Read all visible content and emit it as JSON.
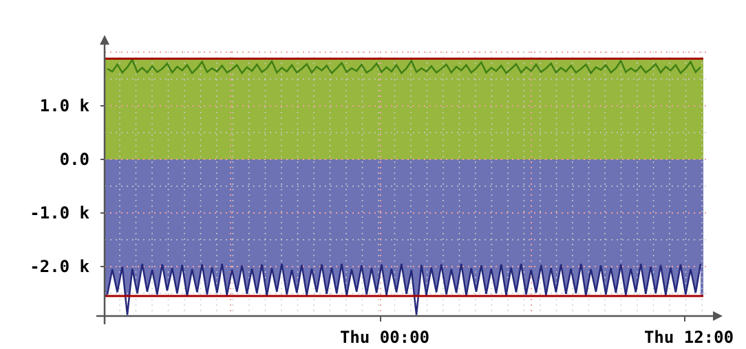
{
  "chart_data": {
    "type": "area",
    "ylim": [
      -2.9,
      2.0
    ],
    "y_ticks": [
      {
        "value": 1.0,
        "label": "1.0 k"
      },
      {
        "value": 0.0,
        "label": "0.0"
      },
      {
        "value": -1.0,
        "label": "-1.0 k"
      },
      {
        "value": -2.0,
        "label": "-2.0 k"
      }
    ],
    "x_ticks": [
      "Thu 00:00",
      "Thu 12:00"
    ],
    "upper_limit": 1.88,
    "lower_limit": -2.55,
    "grid": true,
    "colors": {
      "positive_fill": "#97b73f",
      "positive_line": "#3f7f14",
      "negative_fill": "#6d72b5",
      "negative_line": "#25287a",
      "limit_line": "#a80000",
      "grid": "#f4a0a0"
    },
    "series": [
      {
        "values": [
          1.69,
          1.64,
          1.77,
          1.62,
          1.72,
          1.86,
          1.63,
          1.71,
          1.62,
          1.74,
          1.63,
          1.69,
          1.79,
          1.62,
          1.73,
          1.66,
          1.76,
          1.61,
          1.7,
          1.82,
          1.63,
          1.7,
          1.64,
          1.75,
          1.62,
          1.68,
          1.76,
          1.61,
          1.72,
          1.65,
          1.77,
          1.63,
          1.7,
          1.83,
          1.62,
          1.71,
          1.64,
          1.76,
          1.62,
          1.69,
          1.78,
          1.62,
          1.73,
          1.66,
          1.75,
          1.61,
          1.7,
          1.8,
          1.63,
          1.7,
          1.65,
          1.77,
          1.62,
          1.68,
          1.79,
          1.63,
          1.72,
          1.64,
          1.76,
          1.61,
          1.7,
          1.84,
          1.63,
          1.7,
          1.64,
          1.74,
          1.62,
          1.69,
          1.77,
          1.62,
          1.73,
          1.66,
          1.76,
          1.62,
          1.7,
          1.81,
          1.62,
          1.71,
          1.65,
          1.75,
          1.61,
          1.69,
          1.78,
          1.62,
          1.72,
          1.65,
          1.77,
          1.63,
          1.7,
          1.79,
          1.62,
          1.71,
          1.64,
          1.75,
          1.62,
          1.69,
          1.77,
          1.61,
          1.72,
          1.67,
          1.76,
          1.62,
          1.7,
          1.84,
          1.63,
          1.7,
          1.64,
          1.74,
          1.62,
          1.69,
          1.78,
          1.62,
          1.73,
          1.66,
          1.76,
          1.61,
          1.7,
          1.82,
          1.63,
          1.72
        ]
      },
      {
        "values": [
          -2.52,
          -2.05,
          -2.48,
          -2.0,
          -2.9,
          -2.04,
          -2.5,
          -1.95,
          -2.47,
          -2.06,
          -2.52,
          -1.96,
          -2.45,
          -2.03,
          -2.5,
          -1.97,
          -2.55,
          -2.05,
          -2.48,
          -1.96,
          -2.52,
          -2.02,
          -2.49,
          -1.95,
          -2.53,
          -2.06,
          -2.47,
          -1.98,
          -2.51,
          -2.04,
          -2.5,
          -1.96,
          -2.54,
          -2.03,
          -2.47,
          -1.95,
          -2.52,
          -2.06,
          -2.49,
          -1.97,
          -2.53,
          -2.04,
          -2.48,
          -1.96,
          -2.51,
          -2.02,
          -2.5,
          -1.95,
          -2.54,
          -2.05,
          -2.47,
          -1.98,
          -2.52,
          -2.03,
          -2.49,
          -1.96,
          -2.53,
          -2.04,
          -2.48,
          -1.95,
          -2.51,
          -2.06,
          -2.9,
          -1.97,
          -2.53,
          -2.02,
          -2.48,
          -1.96,
          -2.52,
          -2.05,
          -2.49,
          -1.95,
          -2.54,
          -2.03,
          -2.47,
          -1.98,
          -2.51,
          -2.04,
          -2.5,
          -1.96,
          -2.53,
          -2.02,
          -2.48,
          -1.95,
          -2.52,
          -2.06,
          -2.49,
          -1.97,
          -2.53,
          -2.03,
          -2.48,
          -1.96,
          -2.51,
          -2.04,
          -2.5,
          -1.95,
          -2.54,
          -2.05,
          -2.47,
          -1.98,
          -2.52,
          -2.03,
          -2.49,
          -1.96,
          -2.53,
          -2.04,
          -2.48,
          -1.95,
          -2.51,
          -2.0,
          -2.5,
          -1.97,
          -2.53,
          -2.02,
          -2.48,
          -1.96,
          -2.52,
          -2.05,
          -2.49,
          -1.95
        ]
      }
    ]
  }
}
